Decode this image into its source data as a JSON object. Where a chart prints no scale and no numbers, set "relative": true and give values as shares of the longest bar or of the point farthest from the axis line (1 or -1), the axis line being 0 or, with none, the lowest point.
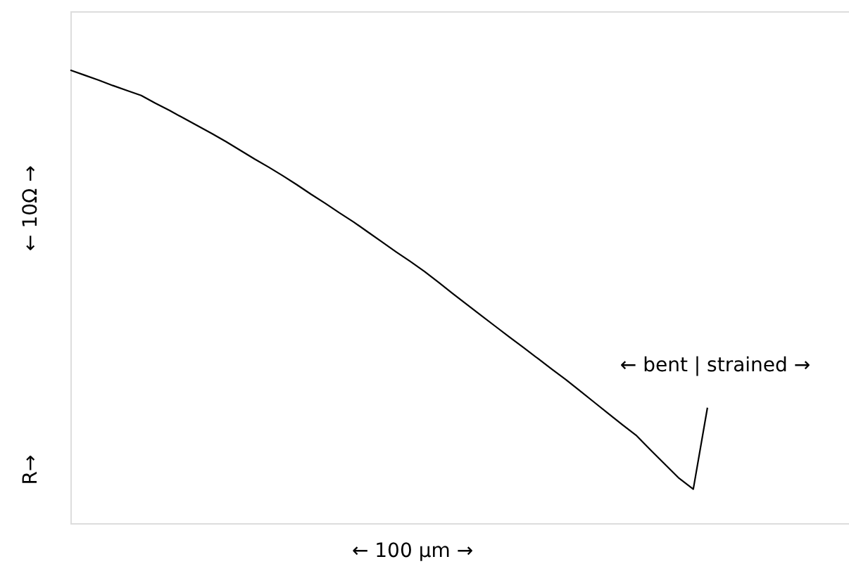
{
  "chart_data": {
    "type": "line",
    "relative": true,
    "categories": [
      null,
      null,
      null,
      null,
      null,
      null,
      null,
      null,
      null,
      null,
      null,
      null,
      null,
      null,
      null,
      null,
      null,
      null,
      null,
      null,
      null,
      null,
      null,
      null,
      null,
      null,
      null,
      null,
      null,
      null,
      null,
      null,
      null,
      null,
      null,
      null,
      null,
      null,
      null,
      null,
      null,
      null,
      null,
      null,
      null,
      null,
      null,
      null,
      null,
      null,
      null,
      null,
      null,
      null,
      null,
      null
    ],
    "series": [
      {
        "color": "#000000",
        "values": [
          1,
          0.989,
          0.978,
          0.966,
          0.955,
          0.944,
          0.927,
          0.911,
          0.894,
          0.877,
          0.86,
          0.842,
          0.823,
          0.804,
          0.786,
          0.767,
          0.747,
          0.726,
          0.706,
          0.685,
          0.665,
          0.643,
          0.621,
          0.599,
          0.578,
          0.556,
          0.532,
          0.507,
          0.483,
          0.459,
          0.435,
          0.411,
          0.388,
          0.364,
          0.34,
          0.317,
          0.292,
          0.267,
          0.242,
          0.217,
          0.193,
          0.161,
          0.13,
          0.099,
          0.075,
          0.255,
          null,
          null,
          null,
          null,
          null,
          null,
          null,
          null,
          null,
          null
        ]
      }
    ],
    "annotations": [
      "← 10Ω →",
      "R→",
      "←   100 μm   →",
      "← bent | strained →"
    ]
  }
}
